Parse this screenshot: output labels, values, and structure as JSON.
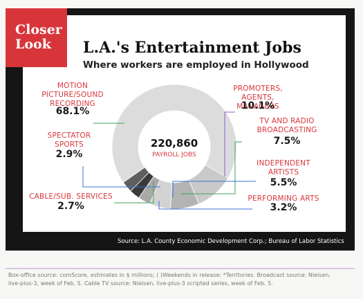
{
  "badge": "Closer Look",
  "chart_data": {
    "type": "pie",
    "title": "L.A.'s Entertainment Jobs",
    "subtitle": "Where workers are employed in Hollywood",
    "center_label": "220,860",
    "center_sublabel": "PAYROLL JOBS",
    "categories": [
      "MOTION PICTURE/SOUND RECORDING",
      "PROMOTERS, AGENTS, MANAGERS",
      "TV AND RADIO BROADCASTING",
      "INDEPENDENT ARTISTS",
      "PERFORMING ARTS",
      "CABLE/SUB. SERVICES",
      "SPECTATOR SPORTS"
    ],
    "values": [
      68.1,
      10.1,
      7.5,
      5.5,
      3.2,
      2.7,
      2.9
    ],
    "value_labels": [
      "68.1%",
      "10.1%",
      "7.5%",
      "5.5%",
      "3.2%",
      "2.7%",
      "2.9%"
    ],
    "colors": [
      "#dcdcdc",
      "#c9c9c9",
      "#b4b4b4",
      "#d3d3d3",
      "#a9a9a9",
      "#3a3a3a",
      "#5e5e5e"
    ],
    "source": "Source: L.A. County Economic Development Corp.; Bureau of Labor Statistics"
  },
  "footnote": "Box-office source: comScore, estimates in $ millions; ( )Weekends in release; *Territories. Broadcast source: Nielsen, live-plus-3, week of Feb. 5. Cable TV source: Nielsen, live-plus-3 scripted series, week of Feb. 5."
}
